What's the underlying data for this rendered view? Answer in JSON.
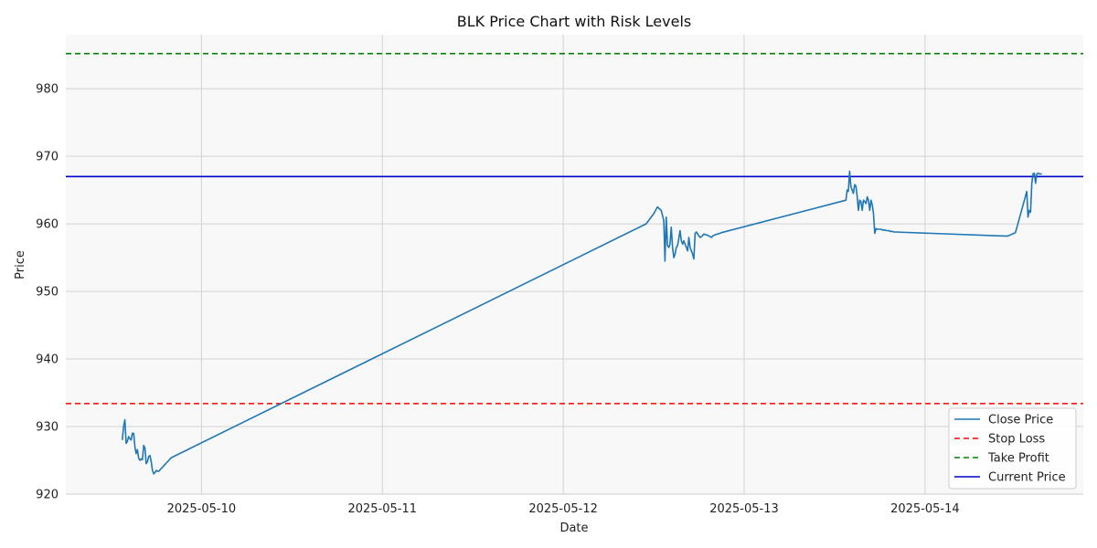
{
  "chart_data": {
    "type": "line",
    "title": "BLK Price Chart with Risk Levels",
    "xlabel": "Date",
    "ylabel": "Price",
    "ylim": [
      920,
      988
    ],
    "xlim": [
      "2025-05-09T06:00",
      "2025-05-14T21:00"
    ],
    "yticks": [
      920,
      930,
      940,
      950,
      960,
      970,
      980
    ],
    "xticks": [
      "2025-05-10",
      "2025-05-11",
      "2025-05-12",
      "2025-05-13",
      "2025-05-14"
    ],
    "grid": true,
    "legend_position": "lower-right",
    "series": [
      {
        "name": "Close Price",
        "color": "#1f77b4",
        "style": "solid",
        "x": [
          "2025-05-09T13:30",
          "2025-05-09T13:40",
          "2025-05-09T13:50",
          "2025-05-09T14:00",
          "2025-05-09T14:10",
          "2025-05-09T14:20",
          "2025-05-09T14:30",
          "2025-05-09T14:40",
          "2025-05-09T14:50",
          "2025-05-09T15:00",
          "2025-05-09T15:10",
          "2025-05-09T15:20",
          "2025-05-09T15:30",
          "2025-05-09T15:40",
          "2025-05-09T15:50",
          "2025-05-09T16:00",
          "2025-05-09T16:10",
          "2025-05-09T16:20",
          "2025-05-09T16:30",
          "2025-05-09T16:40",
          "2025-05-09T16:50",
          "2025-05-09T17:00",
          "2025-05-09T17:10",
          "2025-05-09T17:20",
          "2025-05-09T17:30",
          "2025-05-09T17:40",
          "2025-05-09T17:50",
          "2025-05-09T18:00",
          "2025-05-09T18:10",
          "2025-05-09T18:20",
          "2025-05-09T18:30",
          "2025-05-09T18:40",
          "2025-05-09T18:50",
          "2025-05-09T19:00",
          "2025-05-09T19:10",
          "2025-05-09T19:20",
          "2025-05-09T19:30",
          "2025-05-09T19:40",
          "2025-05-09T19:50",
          "2025-05-09T20:00",
          "2025-05-12T11:00",
          "2025-05-12T12:00",
          "2025-05-12T12:30",
          "2025-05-12T13:00",
          "2025-05-12T13:20",
          "2025-05-12T13:30",
          "2025-05-12T13:40",
          "2025-05-12T13:50",
          "2025-05-12T14:00",
          "2025-05-12T14:10",
          "2025-05-12T14:20",
          "2025-05-12T14:30",
          "2025-05-12T14:40",
          "2025-05-12T14:50",
          "2025-05-12T15:00",
          "2025-05-12T15:10",
          "2025-05-12T15:20",
          "2025-05-12T15:30",
          "2025-05-12T15:40",
          "2025-05-12T15:50",
          "2025-05-12T16:00",
          "2025-05-12T16:10",
          "2025-05-12T16:20",
          "2025-05-12T16:30",
          "2025-05-12T16:40",
          "2025-05-12T16:50",
          "2025-05-12T17:00",
          "2025-05-12T17:10",
          "2025-05-12T17:20",
          "2025-05-12T17:30",
          "2025-05-12T17:40",
          "2025-05-12T17:50",
          "2025-05-12T18:00",
          "2025-05-12T18:10",
          "2025-05-12T18:20",
          "2025-05-12T18:30",
          "2025-05-12T18:40",
          "2025-05-12T18:50",
          "2025-05-12T19:00",
          "2025-05-12T19:10",
          "2025-05-12T19:20",
          "2025-05-12T19:30",
          "2025-05-12T19:40",
          "2025-05-12T19:50",
          "2025-05-12T20:00",
          "2025-05-12T20:10",
          "2025-05-12T20:30",
          "2025-05-12T21:00",
          "2025-05-13T13:30",
          "2025-05-13T13:40",
          "2025-05-13T13:50",
          "2025-05-13T14:00",
          "2025-05-13T14:10",
          "2025-05-13T14:20",
          "2025-05-13T14:30",
          "2025-05-13T14:40",
          "2025-05-13T14:50",
          "2025-05-13T15:00",
          "2025-05-13T15:10",
          "2025-05-13T15:20",
          "2025-05-13T15:30",
          "2025-05-13T15:40",
          "2025-05-13T15:50",
          "2025-05-13T16:00",
          "2025-05-13T16:10",
          "2025-05-13T16:20",
          "2025-05-13T16:30",
          "2025-05-13T16:40",
          "2025-05-13T16:50",
          "2025-05-13T17:00",
          "2025-05-13T17:10",
          "2025-05-13T17:20",
          "2025-05-13T17:30",
          "2025-05-13T17:40",
          "2025-05-13T17:50",
          "2025-05-13T18:00",
          "2025-05-13T18:10",
          "2025-05-13T18:20",
          "2025-05-13T18:30",
          "2025-05-13T18:40",
          "2025-05-13T18:50",
          "2025-05-13T19:00",
          "2025-05-13T19:10",
          "2025-05-13T19:20",
          "2025-05-13T19:30",
          "2025-05-13T19:40",
          "2025-05-13T19:50",
          "2025-05-13T20:00",
          "2025-05-14T10:30",
          "2025-05-14T11:00",
          "2025-05-14T12:00",
          "2025-05-14T13:30",
          "2025-05-14T13:40",
          "2025-05-14T13:50",
          "2025-05-14T14:00",
          "2025-05-14T14:10",
          "2025-05-14T14:20",
          "2025-05-14T14:30",
          "2025-05-14T14:40",
          "2025-05-14T14:50",
          "2025-05-14T15:00",
          "2025-05-14T15:10",
          "2025-05-14T15:20",
          "2025-05-14T15:30"
        ],
        "y": [
          928.0,
          930.0,
          931.0,
          927.5,
          927.8,
          928.5,
          928.2,
          928.0,
          929.0,
          929.0,
          927.0,
          926.0,
          926.6,
          925.3,
          925.0,
          925.2,
          925.1,
          927.2,
          926.8,
          924.5,
          924.8,
          925.6,
          925.7,
          924.8,
          923.5,
          923.0,
          923.2,
          923.5,
          923.4,
          923.4,
          923.6,
          923.8,
          924.0,
          924.2,
          924.4,
          924.6,
          924.8,
          925.0,
          925.2,
          925.4,
          960.0,
          961.5,
          962.5,
          962.0,
          960.5,
          954.5,
          961.0,
          956.8,
          956.5,
          957.0,
          959.5,
          956.5,
          955.0,
          955.5,
          956.5,
          956.8,
          957.8,
          959.0,
          957.5,
          957.0,
          957.5,
          957.0,
          956.5,
          956.0,
          958.0,
          956.5,
          956.0,
          955.5,
          954.8,
          958.6,
          958.8,
          958.5,
          958.2,
          958.0,
          958.1,
          958.3,
          958.5,
          958.4,
          958.4,
          958.3,
          958.2,
          958.1,
          958.0,
          958.2,
          958.3,
          958.4,
          958.5,
          958.7,
          963.5,
          965.0,
          964.8,
          967.8,
          965.5,
          965.0,
          964.5,
          965.8,
          965.6,
          964.0,
          962.0,
          963.5,
          963.3,
          962.0,
          963.5,
          963.3,
          963.0,
          964.0,
          963.5,
          962.0,
          963.5,
          962.8,
          961.5,
          958.6,
          959.3,
          959.2,
          959.2,
          959.2,
          959.2,
          959.1,
          959.1,
          959.1,
          959.0,
          959.0,
          959.0,
          958.9,
          958.9,
          958.9,
          958.8,
          958.8,
          958.2,
          958.2,
          958.7,
          964.8,
          961.0,
          962.0,
          961.7,
          966.0,
          967.4,
          967.5,
          966.0,
          967.4,
          967.5,
          967.4,
          967.4,
          967.4
        ]
      },
      {
        "name": "Stop Loss",
        "color": "#ff0000",
        "style": "dashed",
        "value": 933.4
      },
      {
        "name": "Take Profit",
        "color": "#008000",
        "style": "dashed",
        "value": 985.2
      },
      {
        "name": "Current Price",
        "color": "#0000cc",
        "style": "solid",
        "value": 967.0
      }
    ]
  }
}
